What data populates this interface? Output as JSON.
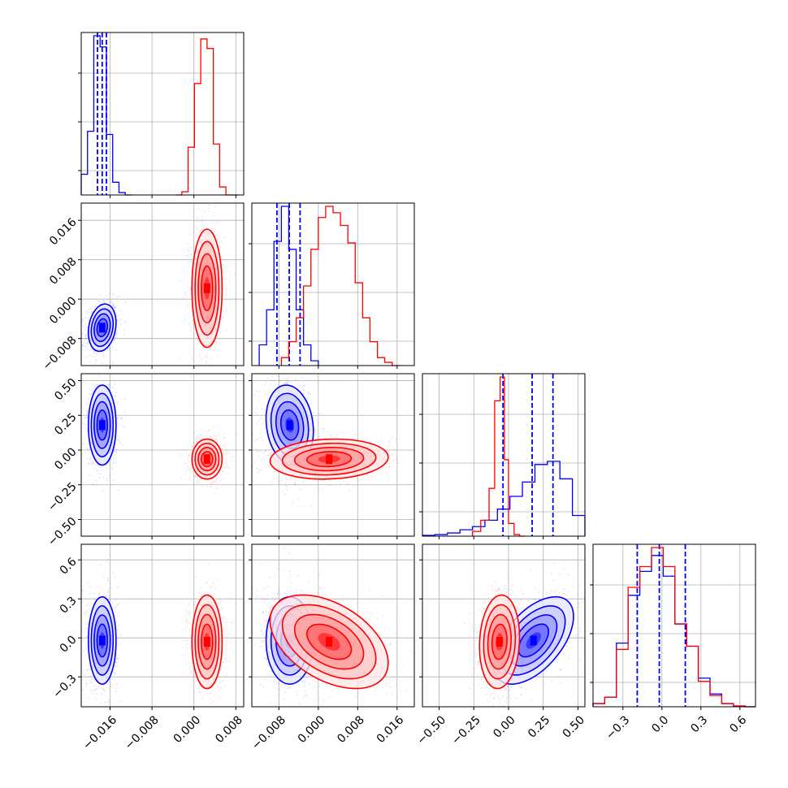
{
  "chart_data": {
    "type": "scatter",
    "title": "",
    "legend": "none",
    "grid": true,
    "n_params": 4,
    "params": [
      {
        "lim": [
          -0.0215,
          0.0095
        ],
        "ticks": [
          -0.016,
          -0.008,
          0.0,
          0.008
        ],
        "tick_labels": [
          "−0.016",
          "−0.008",
          "0.000",
          "0.008"
        ]
      },
      {
        "lim": [
          -0.0135,
          0.0195
        ],
        "ticks": [
          -0.008,
          0.0,
          0.008,
          0.016
        ],
        "tick_labels": [
          "−0.008",
          "0.000",
          "0.008",
          "0.016"
        ]
      },
      {
        "lim": [
          -0.62,
          0.55
        ],
        "ticks": [
          -0.5,
          -0.25,
          0.0,
          0.25,
          0.5
        ],
        "tick_labels": [
          "−0.50",
          "−0.25",
          "0.00",
          "0.25",
          "0.50"
        ]
      },
      {
        "lim": [
          -0.53,
          0.72
        ],
        "ticks": [
          -0.3,
          0.0,
          0.3,
          0.6
        ],
        "tick_labels": [
          "−0.3",
          "0.0",
          "0.3",
          "0.6"
        ]
      }
    ],
    "series": [
      {
        "color": "#0000ff",
        "mean": [
          -0.0175,
          -0.0058,
          0.18,
          -0.02
        ],
        "std": [
          0.0011,
          0.002,
          0.12,
          0.14
        ],
        "corr": [
          [
            1,
            0.2,
            0,
            0
          ],
          [
            0.2,
            1,
            -0.15,
            0
          ],
          [
            0,
            -0.15,
            1,
            0.55
          ],
          [
            0,
            0,
            0.55,
            1
          ]
        ],
        "quantile_lines": [
          [
            -0.0184,
            -0.0175,
            -0.0167
          ],
          [
            -0.0084,
            -0.0059,
            -0.0037
          ],
          [
            -0.04,
            0.17,
            0.32
          ],
          [
            -0.19,
            -0.02,
            0.18
          ]
        ],
        "hist": [
          {
            "edges": [
              -0.0215,
              -0.0203,
              -0.0191,
              -0.0179,
              -0.0167,
              -0.0155,
              -0.0143,
              -0.0131,
              -0.0119
            ],
            "counts": [
              0.13,
              0.4,
              1.0,
              0.93,
              0.38,
              0.08,
              0.015,
              0.0
            ]
          },
          {
            "edges": [
              -0.012,
              -0.0105,
              -0.009,
              -0.0075,
              -0.006,
              -0.0045,
              -0.003,
              -0.0015,
              0.0
            ],
            "counts": [
              0.13,
              0.35,
              0.78,
              1.0,
              0.73,
              0.35,
              0.13,
              0.03
            ]
          },
          {
            "edges": [
              -0.62,
              -0.53,
              -0.44,
              -0.35,
              -0.26,
              -0.17,
              -0.08,
              0.01,
              0.1,
              0.19,
              0.28,
              0.37,
              0.46,
              0.55
            ],
            "counts": [
              0.005,
              0.01,
              0.02,
              0.04,
              0.06,
              0.1,
              0.17,
              0.25,
              0.34,
              0.45,
              0.47,
              0.36,
              0.13
            ]
          },
          {
            "edges": [
              -0.53,
              -0.44,
              -0.35,
              -0.26,
              -0.17,
              -0.08,
              0.01,
              0.1,
              0.19,
              0.28,
              0.37,
              0.46,
              0.55,
              0.64,
              0.72
            ],
            "counts": [
              0.02,
              0.06,
              0.4,
              0.7,
              0.85,
              0.95,
              0.82,
              0.52,
              0.38,
              0.18,
              0.08,
              0.02,
              0.005,
              0.0
            ]
          }
        ]
      },
      {
        "color": "#ff0000",
        "mean": [
          0.0025,
          0.0022,
          -0.065,
          -0.03
        ],
        "std": [
          0.0012,
          0.005,
          0.06,
          0.15
        ],
        "corr": [
          [
            1,
            0,
            0,
            0
          ],
          [
            0,
            1,
            0.1,
            -0.45
          ],
          [
            0,
            0.1,
            1,
            0.1
          ],
          [
            0,
            -0.45,
            0.1,
            1
          ]
        ],
        "quantile_lines": [
          null,
          null,
          null,
          null
        ],
        "hist": [
          {
            "edges": [
              -0.0035,
              -0.0023,
              -0.0011,
              0.0001,
              0.0013,
              0.0025,
              0.0037,
              0.0049,
              0.0061,
              0.0073,
              0.0085
            ],
            "counts": [
              0.0,
              0.02,
              0.3,
              0.7,
              0.98,
              0.92,
              0.32,
              0.05,
              0.0,
              0.0
            ]
          },
          {
            "edges": [
              -0.0075,
              -0.006,
              -0.0045,
              -0.003,
              -0.0015,
              0.0,
              0.0015,
              0.003,
              0.0045,
              0.006,
              0.0075,
              0.009,
              0.0105,
              0.012,
              0.0135,
              0.015,
              0.0165
            ],
            "counts": [
              0.05,
              0.15,
              0.3,
              0.5,
              0.73,
              0.93,
              1.0,
              0.96,
              0.88,
              0.77,
              0.52,
              0.3,
              0.15,
              0.05,
              0.02,
              0.0
            ]
          },
          {
            "edges": [
              -0.26,
              -0.2,
              -0.14,
              -0.1,
              -0.06,
              -0.03,
              0.0,
              0.04,
              0.08,
              0.12
            ],
            "counts": [
              0.03,
              0.1,
              0.3,
              0.85,
              1.0,
              0.48,
              0.08,
              0.01,
              0.0
            ]
          },
          {
            "edges": [
              -0.53,
              -0.44,
              -0.35,
              -0.26,
              -0.17,
              -0.08,
              0.01,
              0.1,
              0.19,
              0.28,
              0.37,
              0.46,
              0.55,
              0.64,
              0.72
            ],
            "counts": [
              0.02,
              0.06,
              0.36,
              0.75,
              0.88,
              1.0,
              0.88,
              0.52,
              0.38,
              0.16,
              0.07,
              0.02,
              0.005,
              0.0
            ]
          }
        ]
      }
    ]
  }
}
